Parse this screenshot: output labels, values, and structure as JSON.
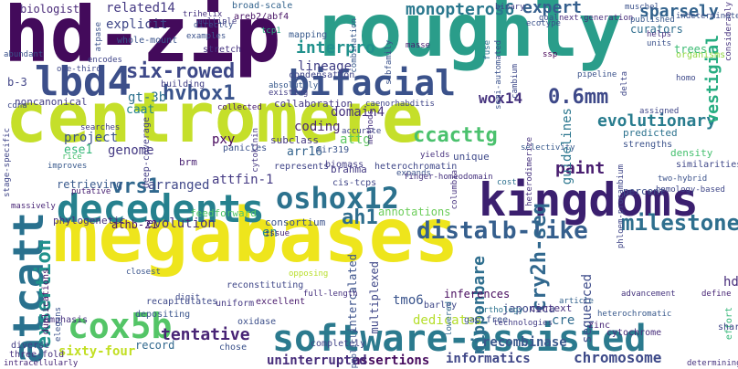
{
  "cloud": {
    "words": [
      {
        "text": "centromere",
        "color": "#c5df2a"
      },
      {
        "text": "megabases",
        "color": "#eee51c"
      },
      {
        "text": "hd-zip",
        "color": "#430a5b"
      },
      {
        "text": "roughly",
        "color": "#2a9d8a"
      },
      {
        "text": "kingdoms",
        "color": "#3b1f6f"
      },
      {
        "text": "software-assisted",
        "color": "#2b7a8e"
      },
      {
        "text": "decedents",
        "color": "#26818e"
      },
      {
        "text": "atcatt",
        "color": "#29718e"
      },
      {
        "text": "lbd4",
        "color": "#3c4f8a"
      },
      {
        "text": "bifacial",
        "color": "#3b528b"
      },
      {
        "text": "cox5b",
        "color": "#54c567"
      },
      {
        "text": "oshox12",
        "color": "#2c728e"
      },
      {
        "text": "distalb-like",
        "color": "#355f8d"
      },
      {
        "text": "milestones",
        "color": "#2e6f8e"
      },
      {
        "text": "six-rowed",
        "color": "#3e4989"
      },
      {
        "text": "hvhox1",
        "color": "#3a548c"
      },
      {
        "text": "ccacttg",
        "color": "#4ac16d"
      },
      {
        "text": "exsertion",
        "color": "#20928c"
      },
      {
        "text": "vrs1",
        "color": "#31688e"
      },
      {
        "text": "ah1",
        "color": "#2e6e8e"
      },
      {
        "text": "cry2h-seq",
        "color": "#31688e"
      },
      {
        "text": "wox14",
        "color": "#46337e"
      },
      {
        "text": "0.6mm",
        "color": "#3e4989"
      },
      {
        "text": "evolutionary",
        "color": "#287c8e"
      },
      {
        "text": "monopteros6",
        "color": "#2a788e"
      },
      {
        "text": "interpro",
        "color": "#21918c"
      },
      {
        "text": "expert",
        "color": "#355f8d"
      },
      {
        "text": "sparsely",
        "color": "#33638d"
      },
      {
        "text": "vestigial",
        "color": "#27ad81"
      },
      {
        "text": "paint",
        "color": "#481d6f"
      },
      {
        "text": "tentative",
        "color": "#482475"
      },
      {
        "text": "nipponbare",
        "color": "#2e6e8e"
      },
      {
        "text": "chromosome",
        "color": "#3e4a89"
      },
      {
        "text": "informatics",
        "color": "#3f4788"
      },
      {
        "text": "assertions",
        "color": "#460b5e"
      },
      {
        "text": "recombinase",
        "color": "#38588c"
      },
      {
        "text": "uninterrupted",
        "color": "#472d7b"
      },
      {
        "text": "sixty-four",
        "color": "#c2df23"
      },
      {
        "text": "related14",
        "color": "#443983"
      },
      {
        "text": "biologist",
        "color": "#482878"
      },
      {
        "text": "explicit",
        "color": "#3f4788"
      },
      {
        "text": "lineage",
        "color": "#424086"
      },
      {
        "text": "domain4",
        "color": "#46327e"
      },
      {
        "text": "caat",
        "color": "#25848e"
      },
      {
        "text": "gt-3b",
        "color": "#2d708e"
      },
      {
        "text": "pxy",
        "color": "#46085c"
      },
      {
        "text": "attg",
        "color": "#5ec962"
      },
      {
        "text": "attfin-1",
        "color": "#443a83"
      },
      {
        "text": "coding",
        "color": "#4a2873"
      },
      {
        "text": "arr16",
        "color": "#33638d"
      },
      {
        "text": "project",
        "color": "#3b528b"
      },
      {
        "text": "ese1",
        "color": "#35b779"
      },
      {
        "text": "genome",
        "color": "#443983"
      },
      {
        "text": "evolution",
        "color": "#46337e"
      },
      {
        "text": "arranged",
        "color": "#3f4788"
      },
      {
        "text": "retrieving",
        "color": "#38598c"
      },
      {
        "text": "athb-21",
        "color": "#48186a"
      },
      {
        "text": "record",
        "color": "#31688e"
      },
      {
        "text": "tmo6",
        "color": "#3a548c"
      },
      {
        "text": "dedicates",
        "color": "#b5de2b"
      },
      {
        "text": "annotations",
        "color": "#6ccd5a"
      },
      {
        "text": "guidelines",
        "color": "#2a768e"
      },
      {
        "text": "hds",
        "color": "#472c7a"
      },
      {
        "text": "sequenced",
        "color": "#3e4c8a"
      },
      {
        "text": "cre",
        "color": "#2f6b8e"
      },
      {
        "text": "en",
        "color": "#228b8d"
      },
      {
        "text": "intercalated",
        "color": "#3b528b"
      },
      {
        "text": "japonica",
        "color": "#3f4788"
      },
      {
        "text": "inferences",
        "color": "#460a5d"
      },
      {
        "text": "multiplexed",
        "color": "#3f4788"
      },
      {
        "text": "b-3",
        "color": "#414487"
      },
      {
        "text": "noncanonical",
        "color": "#433e85"
      },
      {
        "text": "subclass",
        "color": "#453781"
      },
      {
        "text": "collaboration",
        "color": "#453882"
      },
      {
        "text": "predicted",
        "color": "#2c728e"
      },
      {
        "text": "density",
        "color": "#46c06f"
      },
      {
        "text": "percent",
        "color": "#3d4e8a"
      },
      {
        "text": "brahma",
        "color": "#443a83"
      },
      {
        "text": "unique",
        "color": "#3e4989"
      },
      {
        "text": "feedforward",
        "color": "#52c569"
      },
      {
        "text": "brm",
        "color": "#482071"
      },
      {
        "text": "phylogenetic",
        "color": "#46327e"
      },
      {
        "text": "context",
        "color": "#472f7d"
      },
      {
        "text": "consortium",
        "color": "#3b528b"
      },
      {
        "text": "building",
        "color": "#424086"
      },
      {
        "text": "mapping",
        "color": "#38598c"
      },
      {
        "text": "whole-mount",
        "color": "#3a548c"
      },
      {
        "text": "broad-scale",
        "color": "#33638d"
      },
      {
        "text": "areb2/abf4",
        "color": "#471365"
      },
      {
        "text": "stretch",
        "color": "#463480"
      },
      {
        "text": "condensation",
        "color": "#404588"
      },
      {
        "text": "curators",
        "color": "#2e6e8e"
      },
      {
        "text": "trees",
        "color": "#3dbc74"
      },
      {
        "text": "organisms",
        "color": "#90d743"
      },
      {
        "text": "deep-coverage",
        "color": "#433e85"
      },
      {
        "text": "panicles",
        "color": "#3b528b"
      },
      {
        "text": "cis-tcps",
        "color": "#404688"
      },
      {
        "text": "emphasis",
        "color": "#46317e"
      },
      {
        "text": "depositing",
        "color": "#3a548c"
      },
      {
        "text": "reconstituting",
        "color": "#3f4788"
      },
      {
        "text": "completely",
        "color": "#414287"
      },
      {
        "text": "gap-free",
        "color": "#3b528b"
      },
      {
        "text": "zinc",
        "color": "#482576"
      },
      {
        "text": "cytochrome",
        "color": "#472d7b"
      },
      {
        "text": "oxidase",
        "color": "#3c4f8a"
      },
      {
        "text": "chose",
        "color": "#3b528b"
      },
      {
        "text": "diverse",
        "color": "#433e85"
      },
      {
        "text": "three-fold",
        "color": "#46307e"
      },
      {
        "text": "intracellularly",
        "color": "#482878"
      },
      {
        "text": "heterochromatic",
        "color": "#38598c"
      },
      {
        "text": "recapitulates",
        "color": "#3e4989"
      },
      {
        "text": "uniform",
        "color": "#443983"
      },
      {
        "text": "duplications",
        "color": "#471365"
      },
      {
        "text": "elegans",
        "color": "#3b528b"
      },
      {
        "text": "excellent",
        "color": "#481a6c"
      },
      {
        "text": "barley",
        "color": "#3f4788"
      },
      {
        "text": "lowered",
        "color": "#31688e"
      },
      {
        "text": "orthology",
        "color": "#2c738e"
      },
      {
        "text": "full-length",
        "color": "#46317e"
      },
      {
        "text": "heterochromatin",
        "color": "#3f4788"
      },
      {
        "text": "opposing",
        "color": "#b8de29"
      },
      {
        "text": "represents",
        "color": "#404588"
      },
      {
        "text": "biomass",
        "color": "#433d84"
      },
      {
        "text": "cytokinin",
        "color": "#453781"
      },
      {
        "text": "mir319",
        "color": "#3a548c"
      },
      {
        "text": "strengths",
        "color": "#3b528b"
      },
      {
        "text": "similarities",
        "color": "#3f4788"
      },
      {
        "text": "effort",
        "color": "#35b779"
      },
      {
        "text": "define",
        "color": "#482475"
      },
      {
        "text": "share",
        "color": "#404588"
      },
      {
        "text": "article",
        "color": "#33638d"
      },
      {
        "text": "advancement",
        "color": "#45337d"
      },
      {
        "text": "closest",
        "color": "#3a548c"
      },
      {
        "text": "putative",
        "color": "#482173"
      },
      {
        "text": "massively",
        "color": "#482576"
      },
      {
        "text": "stage-specific",
        "color": "#404688"
      },
      {
        "text": "searches",
        "color": "#433e85"
      },
      {
        "text": "issue",
        "color": "#482475"
      },
      {
        "text": "selectivity",
        "color": "#38598c"
      },
      {
        "text": "yields",
        "color": "#46317e"
      },
      {
        "text": "expands",
        "color": "#3b528b"
      },
      {
        "text": "finger-homeodomain",
        "color": "#46327e"
      },
      {
        "text": "phloem-procambium",
        "color": "#404688"
      },
      {
        "text": "homology-based",
        "color": "#3f4788"
      },
      {
        "text": "cost",
        "color": "#2d718e"
      },
      {
        "text": "tcp1",
        "color": "#29af7f"
      },
      {
        "text": "collected",
        "color": "#481b6d"
      },
      {
        "text": "encodes",
        "color": "#404588"
      },
      {
        "text": "one-third",
        "color": "#3e4989"
      },
      {
        "text": "goal",
        "color": "#3b528b"
      },
      {
        "text": "next-generation",
        "color": "#472c7a"
      },
      {
        "text": "published",
        "color": "#38588c"
      },
      {
        "text": "units",
        "color": "#3b528b"
      },
      {
        "text": "helps",
        "color": "#46317e"
      },
      {
        "text": "homo",
        "color": "#3e4989"
      },
      {
        "text": "two-hybrid",
        "color": "#3b528b"
      },
      {
        "text": "heterodimerize",
        "color": "#46327e"
      },
      {
        "text": "caenorhabditis",
        "color": "#404588"
      },
      {
        "text": "examples",
        "color": "#3b528b"
      },
      {
        "text": "absolutely",
        "color": "#38598c"
      },
      {
        "text": "existing",
        "color": "#433e85"
      },
      {
        "text": "ssp",
        "color": "#440154"
      },
      {
        "text": "pipeline",
        "color": "#3b528b"
      },
      {
        "text": "delta",
        "color": "#3f4788"
      },
      {
        "text": "masse",
        "color": "#481f70"
      },
      {
        "text": "cambium",
        "color": "#3e4989"
      },
      {
        "text": "binary",
        "color": "#433e85"
      },
      {
        "text": "ecotype",
        "color": "#3b528b"
      },
      {
        "text": "cdna",
        "color": "#3e4989"
      },
      {
        "text": "fuse",
        "color": "#2d718e"
      },
      {
        "text": "multiple",
        "color": "#433e85"
      },
      {
        "text": "trihelix",
        "color": "#46327e"
      },
      {
        "text": "abundant",
        "color": "#3b528b"
      },
      {
        "text": "considerably",
        "color": "#46327e"
      },
      {
        "text": "indeterminate",
        "color": "#3b528b"
      },
      {
        "text": "semi-automated",
        "color": "#3b528b"
      },
      {
        "text": "determining",
        "color": "#46327e"
      },
      {
        "text": "rice",
        "color": "#4ac16d"
      },
      {
        "text": "improves",
        "color": "#38598c"
      },
      {
        "text": "assigned",
        "color": "#3f4788"
      },
      {
        "text": "subfamily",
        "color": "#3b528b"
      },
      {
        "text": "combination",
        "color": "#38598c"
      },
      {
        "text": "publicly",
        "color": "#3b528b"
      },
      {
        "text": "technologies",
        "color": "#433e85"
      },
      {
        "text": "digit",
        "color": "#3e4989"
      },
      {
        "text": "accurate",
        "color": "#3f4788"
      },
      {
        "text": "directly",
        "color": "#3b528b"
      },
      {
        "text": "columbia",
        "color": "#46327e"
      },
      {
        "text": "muschel",
        "color": "#3b528b"
      },
      {
        "text": "methods",
        "color": "#46327e"
      },
      {
        "text": "atpase",
        "color": "#3b528b"
      }
    ]
  }
}
